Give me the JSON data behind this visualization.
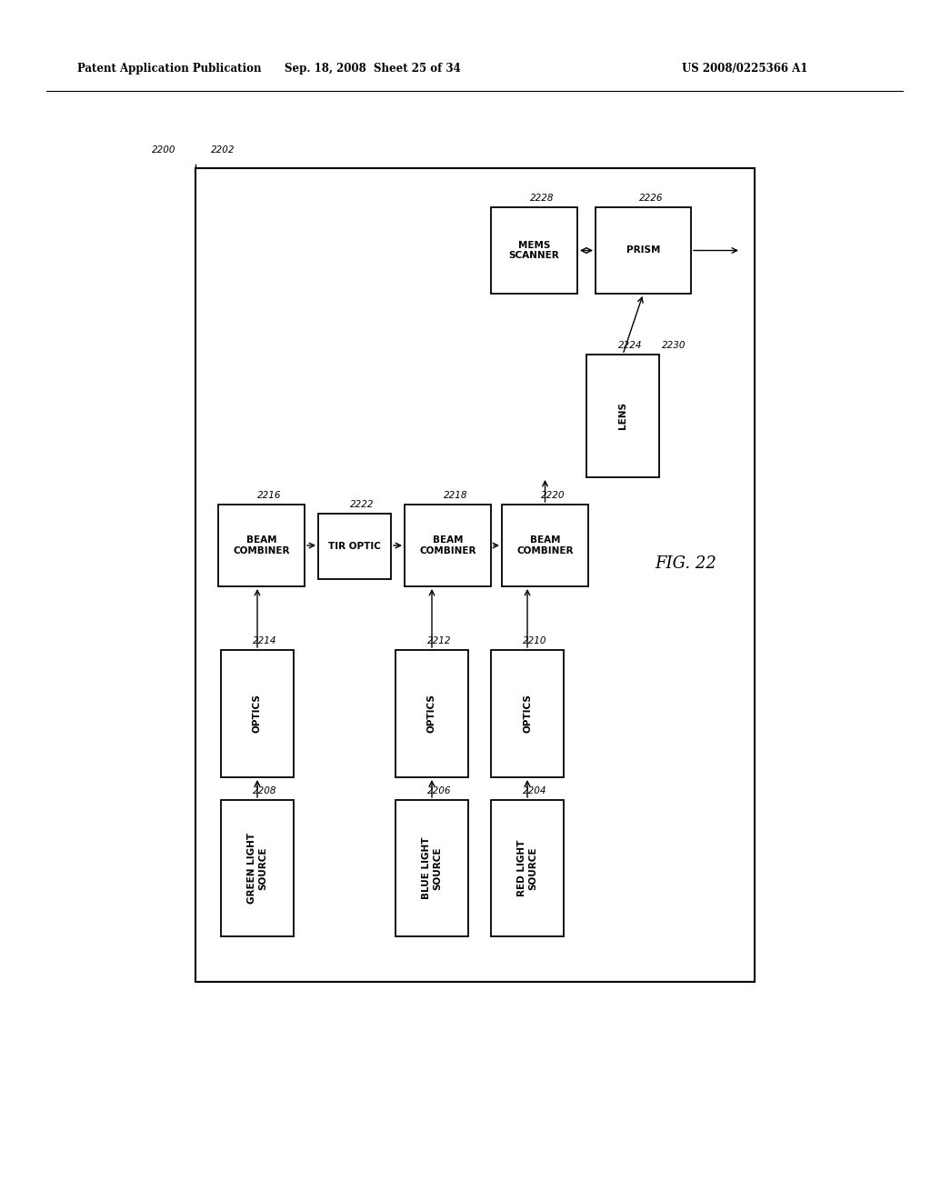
{
  "title_left": "Patent Application Publication",
  "title_mid": "Sep. 18, 2008  Sheet 25 of 34",
  "title_right": "US 2008/0225366 A1",
  "fig_label": "FIG. 22",
  "background": "#ffffff"
}
